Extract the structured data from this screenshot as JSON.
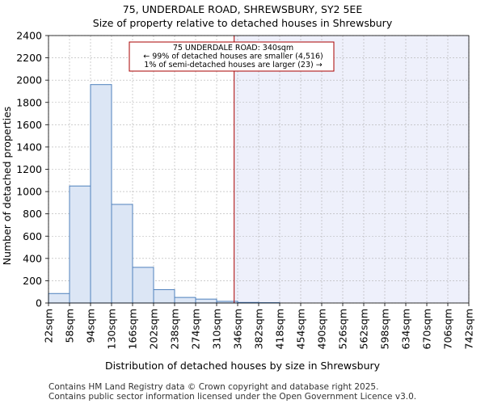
{
  "chart_data": {
    "type": "bar",
    "title": "75, UNDERDALE ROAD, SHREWSBURY, SY2 5EE",
    "subtitle": "Size of property relative to detached houses in Shrewsbury",
    "xlabel": "Distribution of detached houses by size in Shrewsbury",
    "ylabel": "Number of detached properties",
    "bin_edges": [
      22,
      58,
      94,
      130,
      166,
      202,
      238,
      274,
      310,
      346,
      382,
      418,
      454,
      490,
      526,
      562,
      598,
      634,
      670,
      706,
      742
    ],
    "tick_labels": [
      "22sqm",
      "58sqm",
      "94sqm",
      "130sqm",
      "166sqm",
      "202sqm",
      "238sqm",
      "274sqm",
      "310sqm",
      "346sqm",
      "382sqm",
      "418sqm",
      "454sqm",
      "490sqm",
      "526sqm",
      "562sqm",
      "598sqm",
      "634sqm",
      "670sqm",
      "706sqm",
      "742sqm"
    ],
    "values": [
      85,
      1050,
      1960,
      885,
      320,
      120,
      50,
      35,
      15,
      5,
      3,
      0,
      0,
      0,
      0,
      0,
      0,
      0,
      0,
      0
    ],
    "ylim": [
      0,
      2400
    ],
    "yticks": [
      0,
      200,
      400,
      600,
      800,
      1000,
      1200,
      1400,
      1600,
      1800,
      2000,
      2200,
      2400
    ],
    "grid": true,
    "marker": {
      "value": 340,
      "label_lines": [
        "75 UNDERDALE ROAD: 340sqm",
        "← 99% of detached houses are smaller (4,516)",
        "1% of semi-detached houses are larger (23) →"
      ]
    },
    "colors": {
      "bar_fill": "#dce6f5",
      "bar_edge": "#4f81bd",
      "marker": "#aa0000",
      "shade": "#eef0fb",
      "grid": "#b0b0b0"
    }
  },
  "footer": {
    "line1": "Contains HM Land Registry data © Crown copyright and database right 2025.",
    "line2": "Contains public sector information licensed under the Open Government Licence v3.0."
  }
}
